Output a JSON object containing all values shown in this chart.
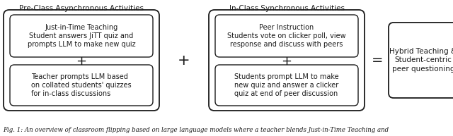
{
  "caption": "Fig. 1: An overview of classroom flipping based on large language models where a teacher blends Just-in-Time Teaching and",
  "pre_class_label": "Pre-Class Asynchronous Activities",
  "in_class_label": "In-Class Synchronous Activities",
  "box1_top": "Just-in-Time Teaching\nStudent answers JiTT quiz and\nprompts LLM to make new quiz",
  "box1_bot": "Teacher prompts LLM based\non collated students' quizzes\nfor in-class discussions",
  "box2_top": "Peer Instruction\nStudents vote on clicker poll, view\nresponse and discuss with peers",
  "box2_bot": "Students prompt LLM to make\nnew quiz and answer a clicker\nquiz at end of peer discussion",
  "box3": "Hybrid Teaching &\nStudent-centric\npeer questioning",
  "bg_color": "#ffffff",
  "box_edge_color": "#1a1a1a",
  "text_color": "#1a1a1a",
  "inner_font_size": 7.0,
  "label_font_size": 7.5,
  "caption_font_size": 6.2,
  "plus_fontsize": 13,
  "eq_fontsize": 14,
  "figw": 6.4,
  "figh": 1.93
}
